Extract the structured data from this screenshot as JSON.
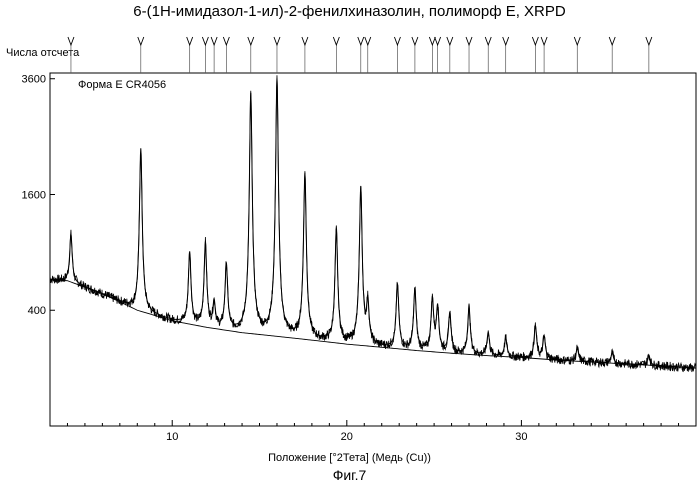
{
  "chart_data": {
    "type": "line",
    "title": "6-(1Н-имидазол-1-ил)-2-фенилхиназолин, полиморф Е, XRPD",
    "ylabel": "Числа отсчета",
    "xlabel": "Положение [°2Тета] (Медь (Cu))",
    "legend": "Форма Е CR4056",
    "caption": "Фиг.7",
    "xlim": [
      3.0,
      40.0
    ],
    "ylim": [
      0,
      3600
    ],
    "y_scale": "sqrt",
    "x_ticks": [
      10,
      20,
      30
    ],
    "y_ticks": [
      400,
      1600,
      3600
    ],
    "background": {
      "x": [
        3,
        4,
        6,
        8,
        10,
        12,
        14,
        16,
        18,
        20,
        22,
        24,
        26,
        28,
        30,
        32,
        34,
        36,
        38,
        40
      ],
      "y": [
        640,
        630,
        520,
        400,
        330,
        290,
        260,
        240,
        220,
        200,
        185,
        170,
        158,
        148,
        140,
        130,
        122,
        115,
        108,
        100
      ]
    },
    "peaks": [
      {
        "x": 4.2,
        "y": 1100
      },
      {
        "x": 8.2,
        "y": 2300
      },
      {
        "x": 11.0,
        "y": 900
      },
      {
        "x": 11.9,
        "y": 1000
      },
      {
        "x": 12.4,
        "y": 450
      },
      {
        "x": 13.1,
        "y": 780
      },
      {
        "x": 14.5,
        "y": 3300
      },
      {
        "x": 16.0,
        "y": 3600
      },
      {
        "x": 17.6,
        "y": 1900
      },
      {
        "x": 19.4,
        "y": 1150
      },
      {
        "x": 20.8,
        "y": 1700
      },
      {
        "x": 21.2,
        "y": 450
      },
      {
        "x": 22.9,
        "y": 600
      },
      {
        "x": 23.9,
        "y": 560
      },
      {
        "x": 24.9,
        "y": 480
      },
      {
        "x": 25.2,
        "y": 420
      },
      {
        "x": 25.9,
        "y": 380
      },
      {
        "x": 27.0,
        "y": 420
      },
      {
        "x": 28.1,
        "y": 260
      },
      {
        "x": 29.1,
        "y": 230
      },
      {
        "x": 30.8,
        "y": 300
      },
      {
        "x": 31.3,
        "y": 240
      },
      {
        "x": 33.2,
        "y": 180
      },
      {
        "x": 35.2,
        "y": 160
      },
      {
        "x": 37.3,
        "y": 150
      }
    ]
  }
}
